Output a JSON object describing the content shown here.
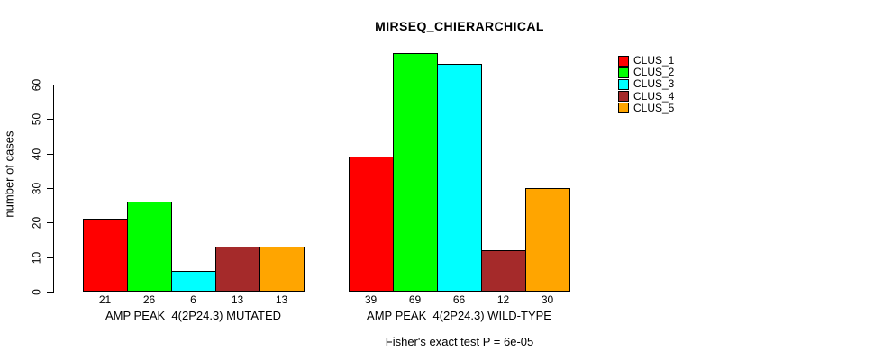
{
  "chart_data": {
    "type": "bar",
    "title": "MIRSEQ_CHIERARCHICAL",
    "ylabel": "number of cases",
    "xlabel": "",
    "ylim": [
      0,
      69
    ],
    "y_ticks": [
      0,
      10,
      20,
      30,
      40,
      50,
      60
    ],
    "grid": false,
    "legend_position": "top-right",
    "bar_border_color": "#000000",
    "categories": [
      "AMP PEAK  4(2P24.3) MUTATED",
      "AMP PEAK  4(2P24.3) WILD-TYPE"
    ],
    "series": [
      {
        "name": "CLUS_1",
        "color": "#FF0000",
        "values": [
          21,
          39
        ]
      },
      {
        "name": "CLUS_2",
        "color": "#00FF00",
        "values": [
          26,
          69
        ]
      },
      {
        "name": "CLUS_3",
        "color": "#00FFFF",
        "values": [
          6,
          66
        ]
      },
      {
        "name": "CLUS_4",
        "color": "#A52A2A",
        "values": [
          13,
          12
        ]
      },
      {
        "name": "CLUS_5",
        "color": "#FFA500",
        "values": [
          13,
          30
        ]
      }
    ],
    "legend": [
      {
        "label": "CLUS_1",
        "color": "#FF0000"
      },
      {
        "label": "CLUS_2",
        "color": "#00FF00"
      },
      {
        "label": "CLUS_3",
        "color": "#00FFFF"
      },
      {
        "label": "CLUS_4",
        "color": "#A52A2A"
      },
      {
        "label": "CLUS_5",
        "color": "#FFA500"
      }
    ],
    "footnote": "Fisher's exact test P = 6e-05"
  }
}
